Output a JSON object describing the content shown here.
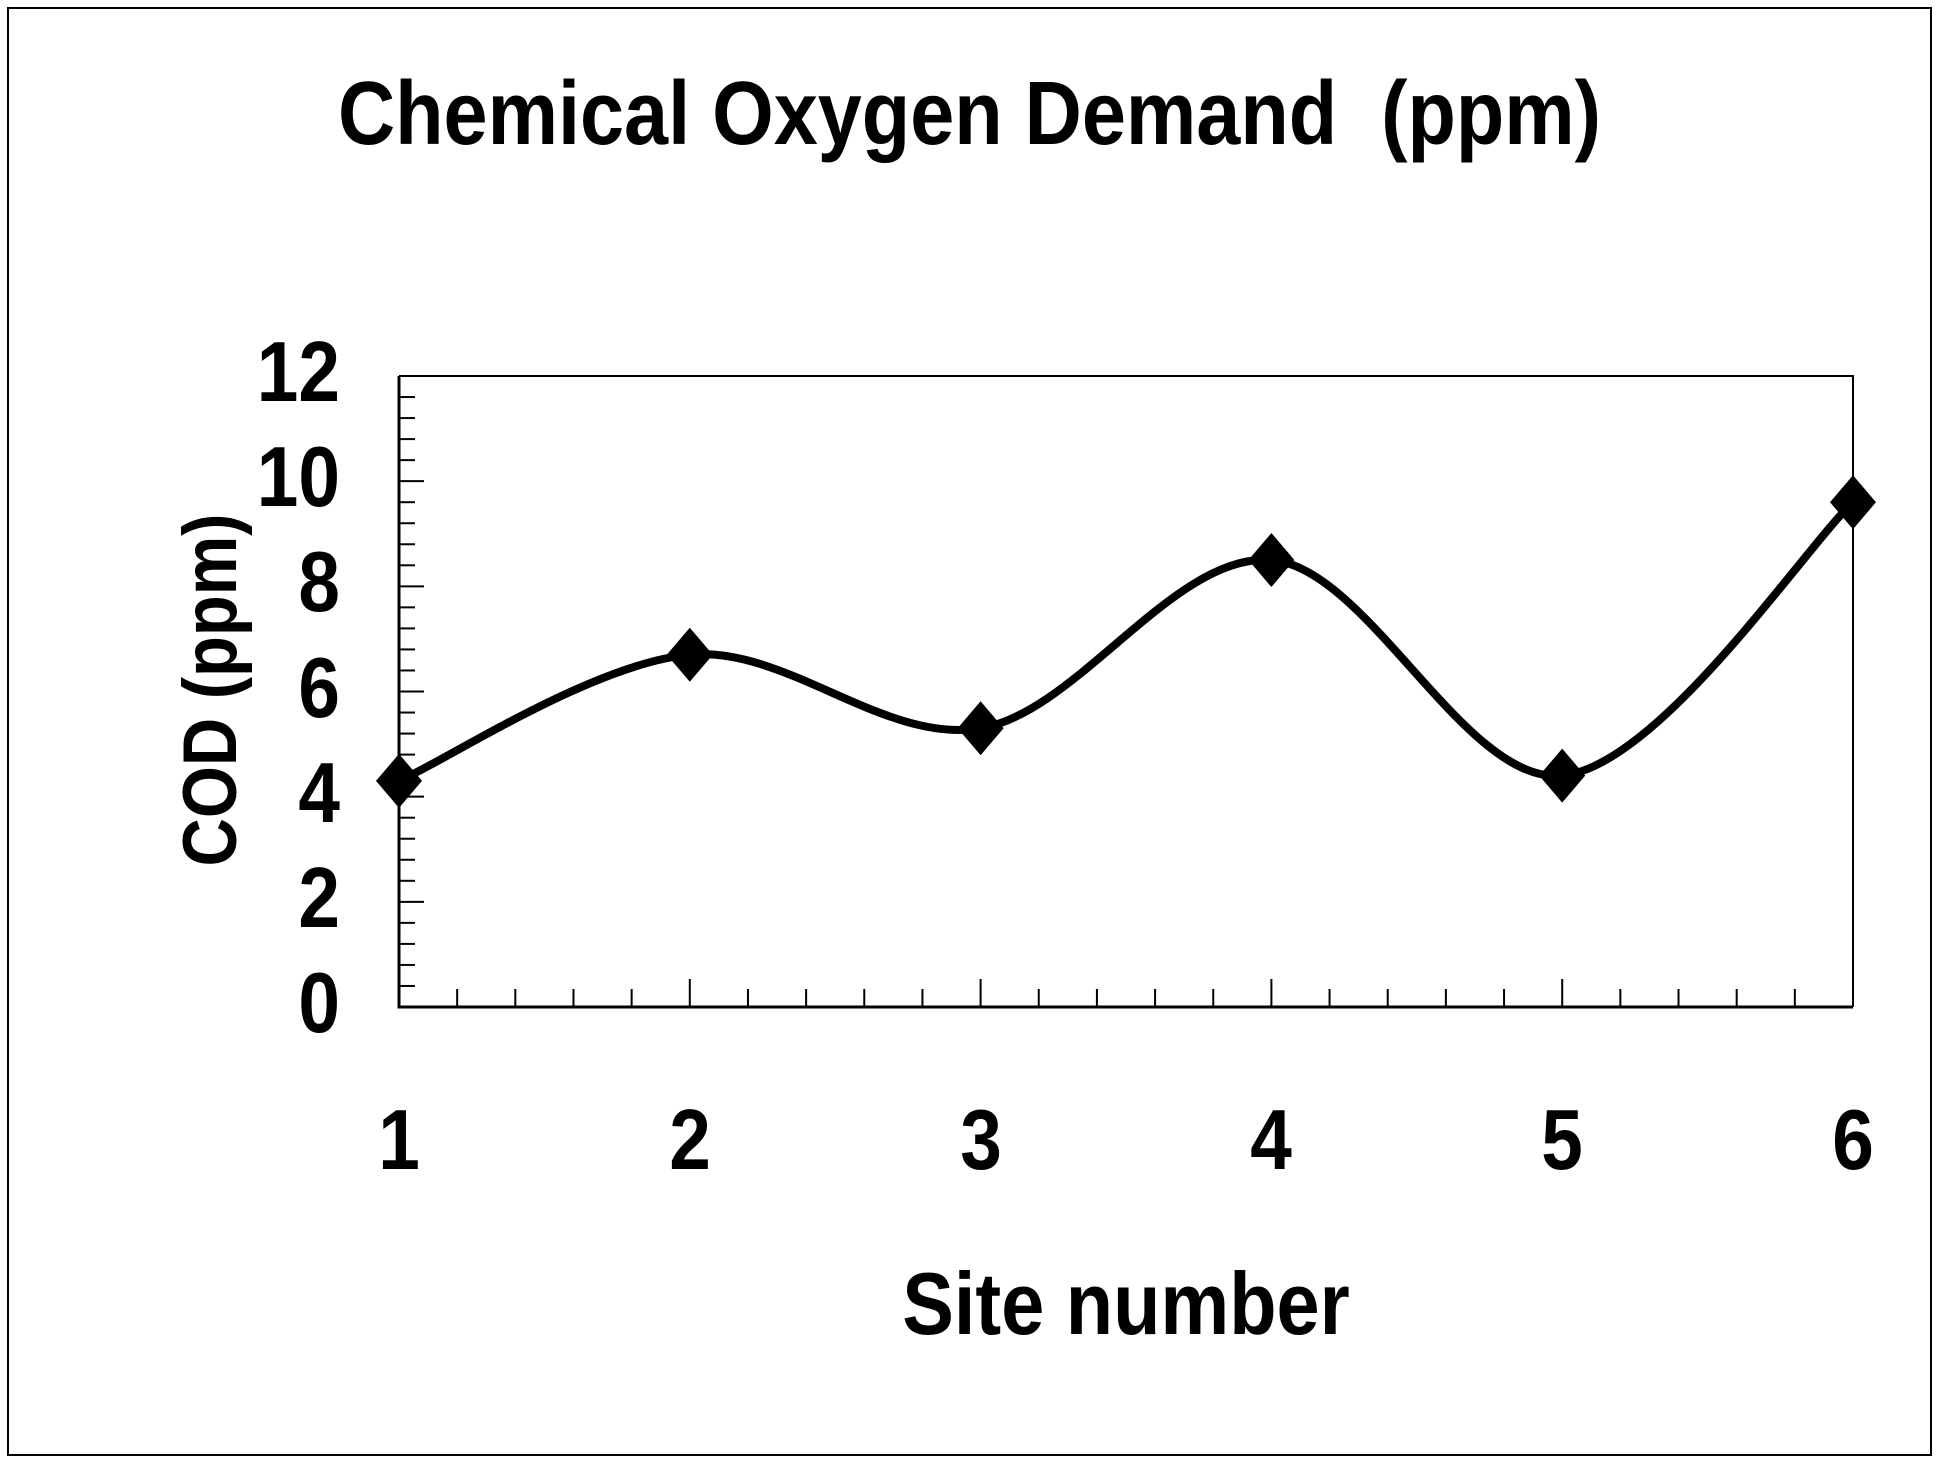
{
  "chart_data": {
    "type": "line",
    "title": "Chemical Oxygen Demand  (ppm)",
    "xlabel": "Site number",
    "ylabel": "COD (ppm)",
    "x": [
      1,
      2,
      3,
      4,
      5,
      6
    ],
    "series": [
      {
        "name": "COD (ppm)",
        "values": [
          4.3,
          6.7,
          5.3,
          8.5,
          4.4,
          9.6
        ]
      }
    ],
    "xlim": [
      1,
      6
    ],
    "ylim": [
      0,
      12
    ],
    "x_major_ticks": [
      1,
      2,
      3,
      4,
      5,
      6
    ],
    "y_major_ticks": [
      0,
      2,
      4,
      6,
      8,
      10,
      12
    ],
    "x_minor_unit": 0.2,
    "y_minor_unit": 0.4,
    "grid": false,
    "legend": false,
    "line_smooth": true,
    "marker": "diamond",
    "colors": {
      "line": "#000000",
      "marker": "#000000",
      "text": "#000000",
      "background": "#ffffff",
      "frame": "#000000"
    }
  }
}
